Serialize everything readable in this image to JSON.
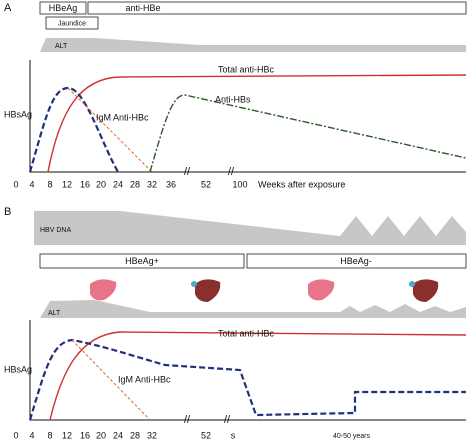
{
  "panel_a": {
    "label": "A",
    "phase_boxes": [
      "HBeAg",
      "anti-HBe"
    ],
    "jaundice": "Jaundice",
    "alt": "ALT",
    "curve_labels": [
      "Total anti-HBc",
      "HBsAg",
      "IgM Anti-HBc",
      "Anti-HBs"
    ],
    "x_ticks": [
      "0",
      "4",
      "8",
      "12",
      "16",
      "20",
      "24",
      "28",
      "32",
      "36",
      "52",
      "100"
    ],
    "x_axis_label": "Weeks after exposure"
  },
  "panel_b": {
    "label": "B",
    "hbv_dna": "HBV DNA",
    "phase_boxes": [
      "HBeAg+",
      "HBeAg-"
    ],
    "alt": "ALT",
    "curve_labels": [
      "Total anti-HBc",
      "HBsAg",
      "IgM Anti-HBc"
    ],
    "x_ticks": [
      "0",
      "4",
      "8",
      "12",
      "16",
      "20",
      "24",
      "28",
      "32",
      "52",
      "s"
    ],
    "x_axis_label": "40-50 years"
  }
}
